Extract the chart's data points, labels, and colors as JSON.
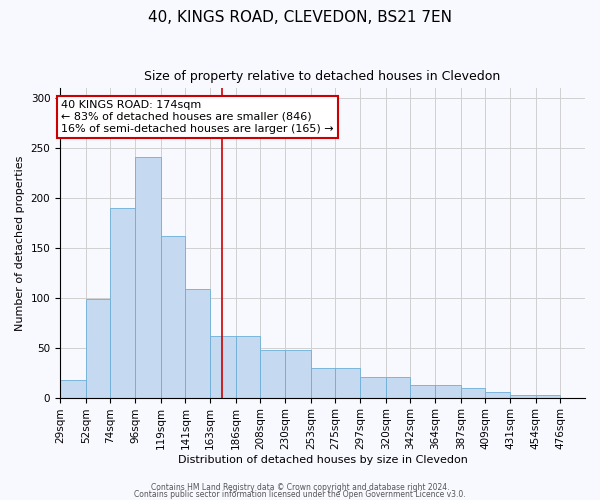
{
  "title": "40, KINGS ROAD, CLEVEDON, BS21 7EN",
  "subtitle": "Size of property relative to detached houses in Clevedon",
  "xlabel": "Distribution of detached houses by size in Clevedon",
  "ylabel": "Number of detached properties",
  "bin_edges": [
    29,
    52,
    74,
    96,
    119,
    141,
    163,
    186,
    208,
    230,
    253,
    275,
    297,
    320,
    342,
    364,
    387,
    409,
    431,
    454,
    476
  ],
  "bar_heights": [
    18,
    99,
    190,
    241,
    162,
    109,
    62,
    62,
    48,
    48,
    30,
    30,
    21,
    21,
    13,
    13,
    10,
    6,
    3,
    3
  ],
  "bar_color": "#c5d9f0",
  "bar_edge_color": "#6baed6",
  "vline_x": 174,
  "vline_color": "#cc0000",
  "ylim": [
    0,
    310
  ],
  "yticks": [
    0,
    50,
    100,
    150,
    200,
    250,
    300
  ],
  "annotation_line1": "40 KINGS ROAD: 174sqm",
  "annotation_line2": "← 83% of detached houses are smaller (846)",
  "annotation_line3": "16% of semi-detached houses are larger (165) →",
  "annotation_box_color": "#ffffff",
  "annotation_box_edge": "#cc0000",
  "background_color": "#f8f8ff",
  "grid_color": "#d0d0d0",
  "title_fontsize": 11,
  "subtitle_fontsize": 9,
  "xlabel_fontsize": 8,
  "ylabel_fontsize": 8,
  "tick_fontsize": 7.5,
  "ann_fontsize": 8,
  "footer1": "Contains HM Land Registry data © Crown copyright and database right 2024.",
  "footer2": "Contains public sector information licensed under the Open Government Licence v3.0."
}
